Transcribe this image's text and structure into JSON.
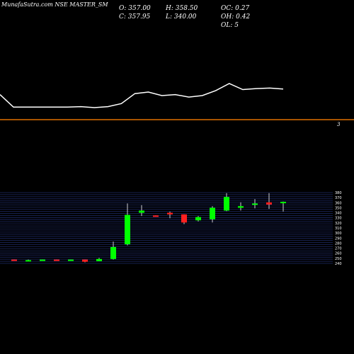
{
  "header": {
    "title": "MunafaSutra.com NSE MASTER_SM",
    "open_label": "O:",
    "open": "357.00",
    "high_label": "H:",
    "high": "358.50",
    "close_label": "C:",
    "close": "357.95",
    "low_label": "L:",
    "low": "340.00",
    "oc_label": "OC:",
    "oc": "0.27",
    "oh_label": "OH:",
    "oh": "0.42",
    "ol_label": "OL:",
    "ol": "5"
  },
  "chart_data": [
    {
      "type": "line",
      "title": "",
      "values": [
        300,
        275,
        275,
        275,
        275,
        275,
        276,
        274,
        276,
        282,
        302,
        305,
        298,
        300,
        295,
        298,
        308,
        322,
        310,
        312,
        313,
        311
      ],
      "color": "#ffffff"
    },
    {
      "type": "line",
      "title": "",
      "values": [
        3,
        3
      ],
      "level_label": "3",
      "color": "#e07000"
    },
    {
      "type": "candlestick",
      "title": "",
      "series": [
        {
          "open": 252,
          "high": 252,
          "low": 250,
          "close": 250
        },
        {
          "open": 251,
          "high": 252,
          "low": 250,
          "close": 251
        },
        {
          "open": 250,
          "high": 252,
          "low": 250,
          "close": 252
        },
        {
          "open": 252,
          "high": 252,
          "low": 250,
          "close": 250
        },
        {
          "open": 251,
          "high": 252,
          "low": 250,
          "close": 252
        },
        {
          "open": 252,
          "high": 252,
          "low": 247,
          "close": 248
        },
        {
          "open": 249,
          "high": 255,
          "low": 249,
          "close": 253
        },
        {
          "open": 253,
          "high": 285,
          "low": 252,
          "close": 275
        },
        {
          "open": 280,
          "high": 355,
          "low": 278,
          "close": 334
        },
        {
          "open": 338,
          "high": 352,
          "low": 332,
          "close": 342
        },
        {
          "open": 333,
          "high": 333,
          "low": 331,
          "close": 331
        },
        {
          "open": 338,
          "high": 340,
          "low": 328,
          "close": 335
        },
        {
          "open": 335,
          "high": 335,
          "low": 317,
          "close": 320
        },
        {
          "open": 324,
          "high": 332,
          "low": 322,
          "close": 330
        },
        {
          "open": 326,
          "high": 350,
          "low": 320,
          "close": 347
        },
        {
          "open": 342,
          "high": 374,
          "low": 341,
          "close": 367
        },
        {
          "open": 347,
          "high": 357,
          "low": 342,
          "close": 350
        },
        {
          "open": 355,
          "high": 363,
          "low": 346,
          "close": 355
        },
        {
          "open": 357,
          "high": 374,
          "low": 345,
          "close": 353
        },
        {
          "open": 357,
          "high": 358.5,
          "low": 340,
          "close": 357.95
        }
      ],
      "y_ticks": [
        "240",
        "250",
        "260",
        "270",
        "280",
        "290",
        "300",
        "310",
        "320",
        "330",
        "340",
        "350",
        "360",
        "370",
        "380"
      ],
      "color_up": "#00ff00",
      "color_down": "#ff2020"
    }
  ]
}
